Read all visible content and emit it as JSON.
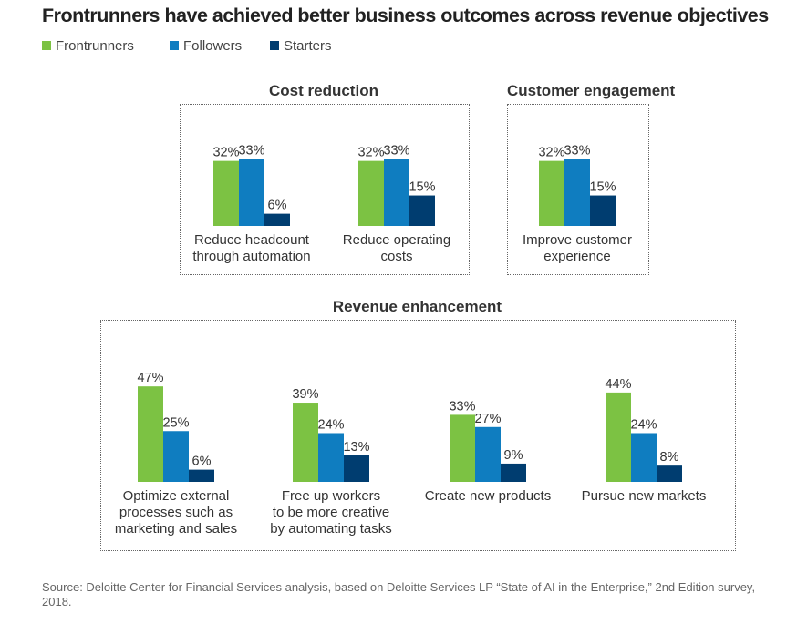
{
  "title": "Frontrunners have achieved better business outcomes across revenue objectives",
  "source": "Source: Deloitte Center for Financial Services analysis, based on Deloitte Services LP “State of AI in the Enterprise,” 2nd Edition survey, 2018.",
  "chart_data": {
    "type": "bar",
    "series": [
      {
        "name": "Frontrunners",
        "color": "#7cc243"
      },
      {
        "name": "Followers",
        "color": "#0f7dc0"
      },
      {
        "name": "Starters",
        "color": "#003d70"
      }
    ],
    "groups": [
      {
        "title": "Cost reduction",
        "categories": [
          {
            "label": [
              "Reduce headcount",
              "through automation"
            ],
            "values": [
              32,
              33,
              6
            ]
          },
          {
            "label": [
              "Reduce operating",
              "costs"
            ],
            "values": [
              32,
              33,
              15
            ]
          }
        ]
      },
      {
        "title": "Customer engagement",
        "categories": [
          {
            "label": [
              "Improve customer",
              "experience"
            ],
            "values": [
              32,
              33,
              15
            ]
          }
        ]
      },
      {
        "title": "Revenue enhancement",
        "categories": [
          {
            "label": [
              "Optimize external",
              "processes such as",
              "marketing and sales"
            ],
            "values": [
              47,
              25,
              6
            ]
          },
          {
            "label": [
              "Free up workers",
              "to be more creative",
              "by automating tasks"
            ],
            "values": [
              39,
              24,
              13
            ]
          },
          {
            "label": [
              "Create new products"
            ],
            "values": [
              33,
              27,
              9
            ]
          },
          {
            "label": [
              "Pursue new markets"
            ],
            "values": [
              44,
              24,
              8
            ]
          }
        ]
      }
    ],
    "value_suffix": "%"
  }
}
